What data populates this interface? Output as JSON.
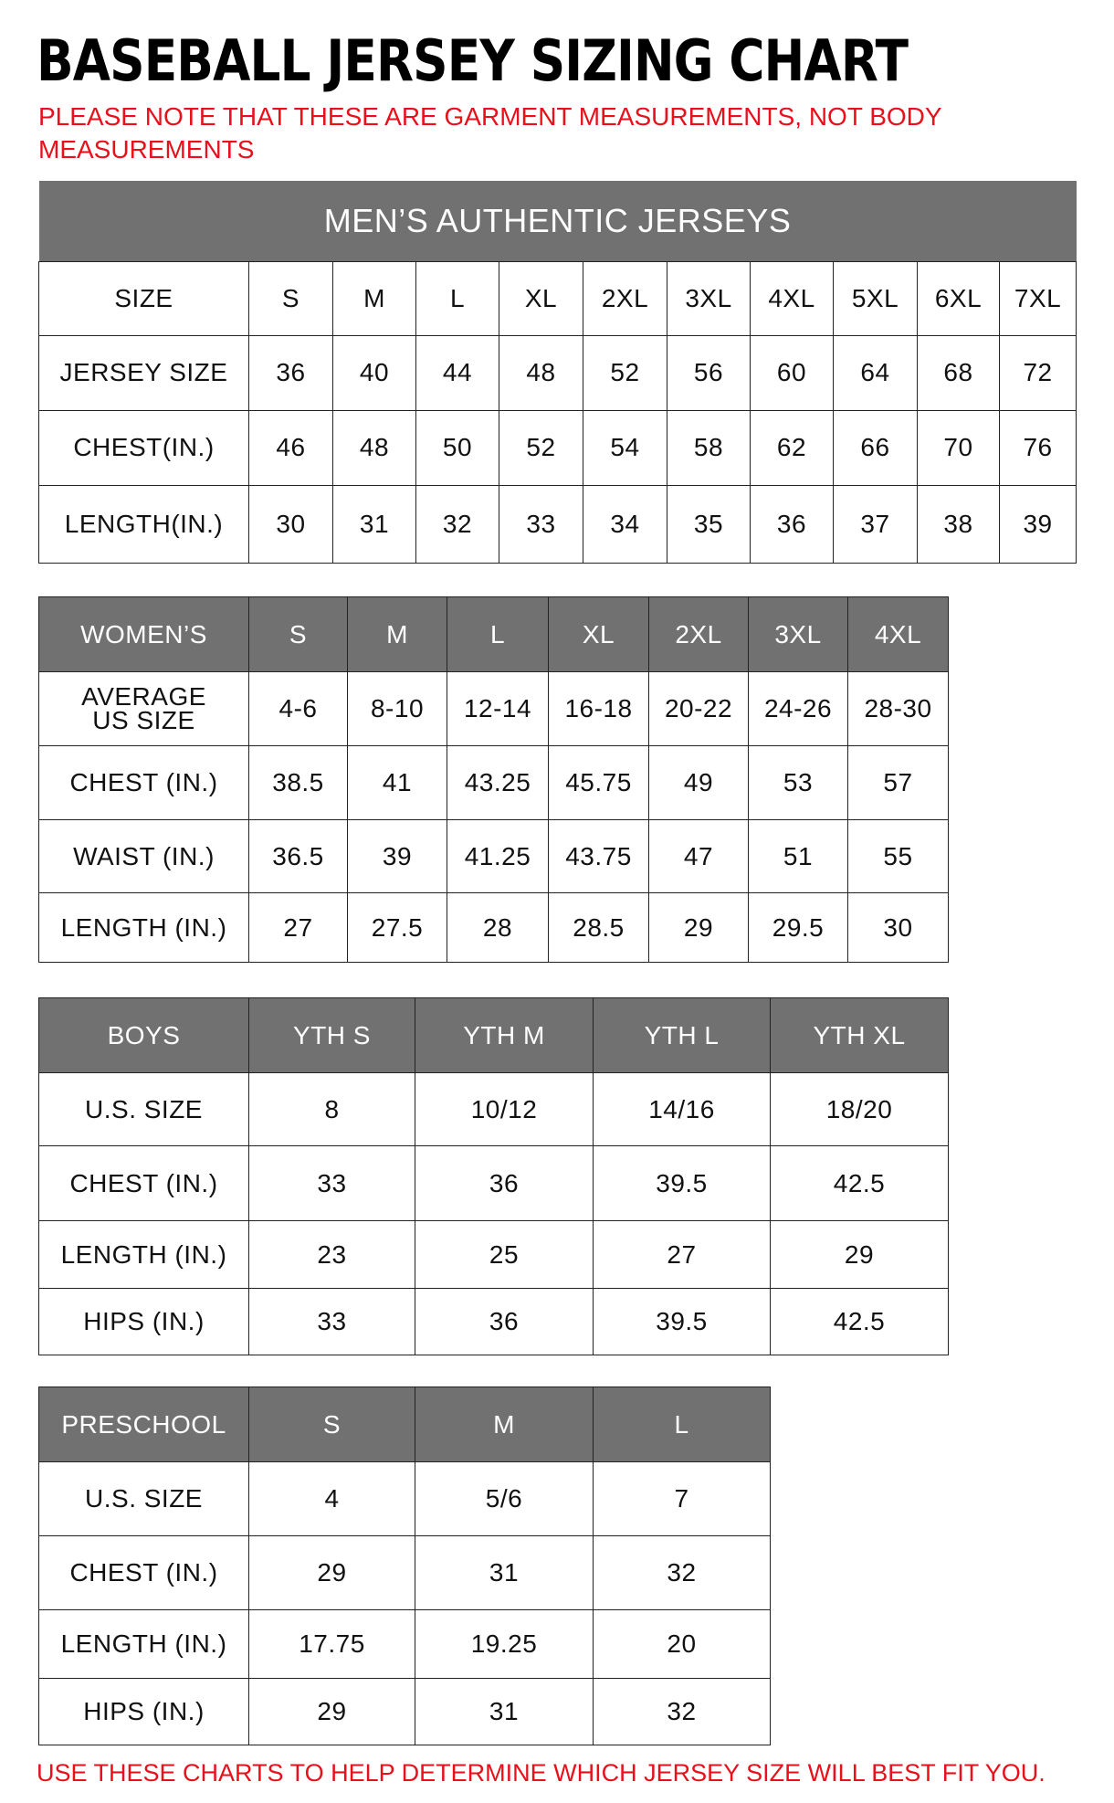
{
  "title": "BASEBALL JERSEY SIZING CHART",
  "note": "PLEASE NOTE THAT THESE ARE GARMENT MEASUREMENTS, NOT BODY MEASUREMENTS",
  "footer": "USE THESE CHARTS TO HELP DETERMINE WHICH JERSEY SIZE WILL BEST FIT YOU.",
  "colors": {
    "header_bg": "#717171",
    "note_red": "#e8101a"
  },
  "mens": {
    "title": "MEN’S AUTHENTIC JERSEYS",
    "header": [
      "SIZE",
      "S",
      "M",
      "L",
      "XL",
      "2XL",
      "3XL",
      "4XL",
      "5XL",
      "6XL",
      "7XL"
    ],
    "rows": [
      [
        "JERSEY SIZE",
        "36",
        "40",
        "44",
        "48",
        "52",
        "56",
        "60",
        "64",
        "68",
        "72"
      ],
      [
        "CHEST(IN.)",
        "46",
        "48",
        "50",
        "52",
        "54",
        "58",
        "62",
        "66",
        "70",
        "76"
      ],
      [
        "LENGTH(IN.)",
        "30",
        "31",
        "32",
        "33",
        "34",
        "35",
        "36",
        "37",
        "38",
        "39"
      ]
    ]
  },
  "womens": {
    "header": [
      "WOMEN’S",
      "S",
      "M",
      "L",
      "XL",
      "2XL",
      "3XL",
      "4XL"
    ],
    "rows": [
      [
        "AVERAGE US SIZE",
        "4-6",
        "8-10",
        "12-14",
        "16-18",
        "20-22",
        "24-26",
        "28-30"
      ],
      [
        "CHEST (IN.)",
        "38.5",
        "41",
        "43.25",
        "45.75",
        "49",
        "53",
        "57"
      ],
      [
        "WAIST (IN.)",
        "36.5",
        "39",
        "41.25",
        "43.75",
        "47",
        "51",
        "55"
      ],
      [
        "LENGTH (IN.)",
        "27",
        "27.5",
        "28",
        "28.5",
        "29",
        "29.5",
        "30"
      ]
    ]
  },
  "boys": {
    "header": [
      "BOYS",
      "YTH S",
      "YTH M",
      "YTH L",
      "YTH XL"
    ],
    "rows": [
      [
        "U.S. SIZE",
        "8",
        "10/12",
        "14/16",
        "18/20"
      ],
      [
        "CHEST (IN.)",
        "33",
        "36",
        "39.5",
        "42.5"
      ],
      [
        "LENGTH (IN.)",
        "23",
        "25",
        "27",
        "29"
      ],
      [
        "HIPS (IN.)",
        "33",
        "36",
        "39.5",
        "42.5"
      ]
    ]
  },
  "preschool": {
    "header": [
      "PRESCHOOL",
      "S",
      "M",
      "L"
    ],
    "rows": [
      [
        "U.S. SIZE",
        "4",
        "5/6",
        "7"
      ],
      [
        "CHEST (IN.)",
        "29",
        "31",
        "32"
      ],
      [
        "LENGTH (IN.)",
        "17.75",
        "19.25",
        "20"
      ],
      [
        "HIPS (IN.)",
        "29",
        "31",
        "32"
      ]
    ]
  }
}
